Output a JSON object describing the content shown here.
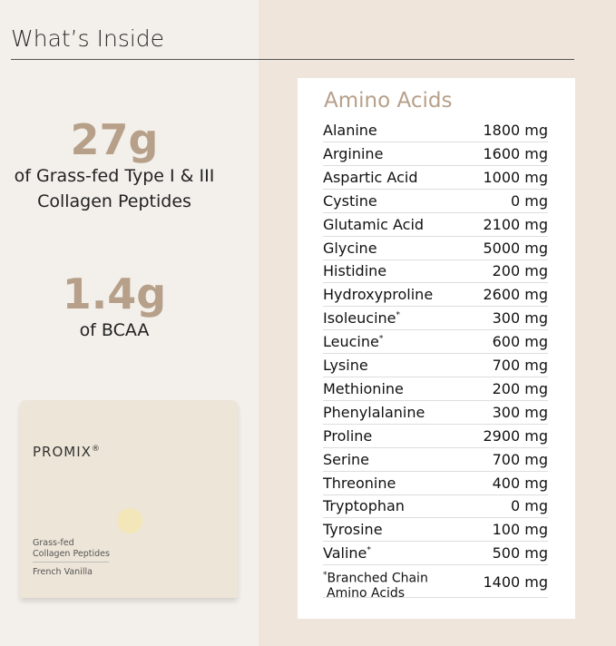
{
  "header": {
    "title": "What’s Inside"
  },
  "stats": [
    {
      "value": "27g",
      "lines": [
        "of Grass-fed Type I & III",
        "Collagen Peptides"
      ]
    },
    {
      "value": "1.4g",
      "lines": [
        "of BCAA"
      ]
    }
  ],
  "product": {
    "brand": "PROMIX",
    "brand_mark": "®",
    "lines": [
      "Grass-fed",
      "Collagen Peptides"
    ],
    "flavor": "French Vanilla"
  },
  "table": {
    "title": "Amino Acids",
    "rows": [
      {
        "name": "Alanine",
        "amount": "1800 mg"
      },
      {
        "name": "Arginine",
        "amount": "1600 mg"
      },
      {
        "name": "Aspartic Acid",
        "amount": "1000 mg"
      },
      {
        "name": "Cystine",
        "amount": "0 mg"
      },
      {
        "name": "Glutamic Acid",
        "amount": "2100 mg"
      },
      {
        "name": "Glycine",
        "amount": "5000 mg"
      },
      {
        "name": "Histidine",
        "amount": "200 mg"
      },
      {
        "name": "Hydroxyproline",
        "amount": "2600 mg"
      },
      {
        "name": "Isoleucine",
        "marker": "*",
        "amount": "300 mg"
      },
      {
        "name": "Leucine",
        "marker": "*",
        "amount": "600 mg"
      },
      {
        "name": "Lysine",
        "amount": "700 mg"
      },
      {
        "name": "Methionine",
        "amount": "200 mg"
      },
      {
        "name": "Phenylalanine",
        "amount": "300 mg"
      },
      {
        "name": "Proline",
        "amount": "2900 mg"
      },
      {
        "name": "Serine",
        "amount": "700 mg"
      },
      {
        "name": "Threonine",
        "amount": "400 mg"
      },
      {
        "name": "Tryptophan",
        "amount": "0 mg"
      },
      {
        "name": "Tyrosine",
        "amount": "100 mg"
      },
      {
        "name": "Valine",
        "marker": "*",
        "amount": "500 mg"
      }
    ],
    "footnote": {
      "marker": "*",
      "lines": [
        "Branched Chain",
        "Amino Acids"
      ],
      "amount": "1400 mg"
    }
  }
}
